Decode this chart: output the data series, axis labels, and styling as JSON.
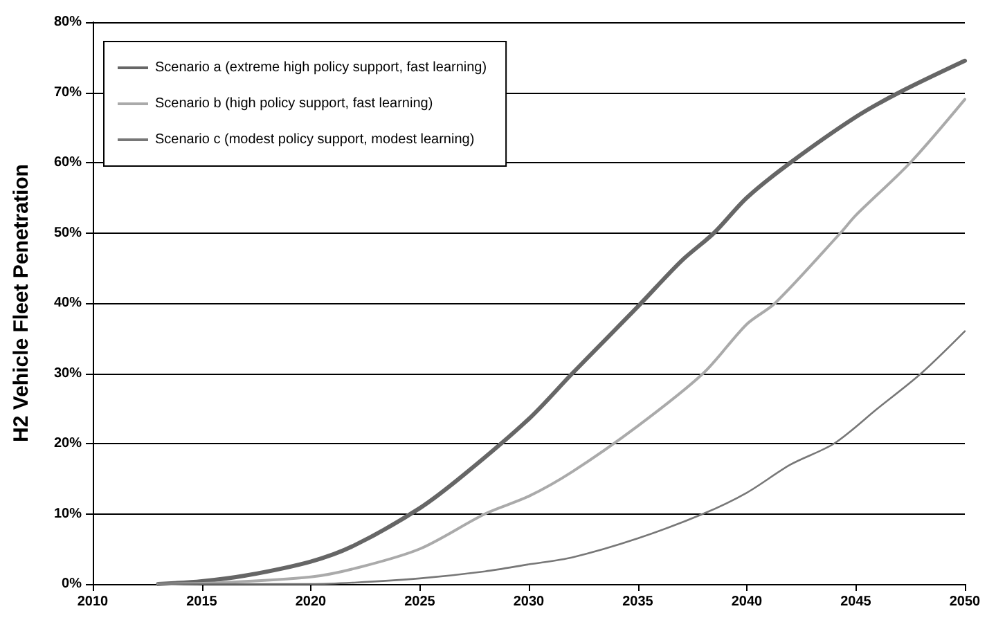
{
  "chart_data": {
    "type": "line",
    "ylabel": "H2 Vehicle Fleet Penetration",
    "xlim": [
      2010,
      2050
    ],
    "xticks": [
      2010,
      2015,
      2020,
      2025,
      2030,
      2035,
      2040,
      2045,
      2050
    ],
    "ylim": [
      0,
      80
    ],
    "yticks": [
      {
        "value": 0,
        "label": "0%"
      },
      {
        "value": 10,
        "label": "10%"
      },
      {
        "value": 20,
        "label": "20%"
      },
      {
        "value": 30,
        "label": "30%"
      },
      {
        "value": 40,
        "label": "40%"
      },
      {
        "value": 50,
        "label": "50%"
      },
      {
        "value": 60,
        "label": "60%"
      },
      {
        "value": 70,
        "label": "70%"
      },
      {
        "value": 80,
        "label": "80%"
      }
    ],
    "grid": "y",
    "legend": "top left",
    "marker": "none",
    "series": [
      {
        "name": "Scenario a (extreme high policy support, fast learning)",
        "color": "#666666",
        "x": [
          2013,
          2015,
          2017,
          2020,
          2022,
          2025,
          2027,
          2030,
          2032,
          2035,
          2037,
          2038.5,
          2040,
          2042,
          2045,
          2047,
          2050
        ],
        "values": [
          0,
          0.4,
          1.2,
          3.2,
          5.5,
          10.8,
          15.5,
          23.5,
          30,
          39.5,
          46,
          50,
          55,
          60,
          66.5,
          70,
          74.5
        ]
      },
      {
        "name": "Scenario b (high policy support, fast learning)",
        "color": "#aaaaaa",
        "x": [
          2013,
          2016,
          2020,
          2022,
          2025,
          2028,
          2030,
          2032,
          2035,
          2038,
          2040,
          2041.3,
          2044.3,
          2045,
          2047.5,
          2050
        ],
        "values": [
          0,
          0.2,
          1,
          2.2,
          5,
          10,
          12.5,
          16,
          22.5,
          30,
          37,
          40,
          50,
          52.5,
          60,
          69
        ]
      },
      {
        "name": "Scenario c (modest policy support, modest learning)",
        "color": "#777777",
        "x": [
          2013,
          2020,
          2022,
          2025,
          2028,
          2030,
          2032,
          2035,
          2038,
          2040,
          2042,
          2044,
          2046,
          2048,
          2050
        ],
        "values": [
          0,
          0,
          0.2,
          0.8,
          1.8,
          2.8,
          3.8,
          6.5,
          10,
          13,
          17,
          20,
          25,
          30,
          36
        ]
      }
    ]
  }
}
